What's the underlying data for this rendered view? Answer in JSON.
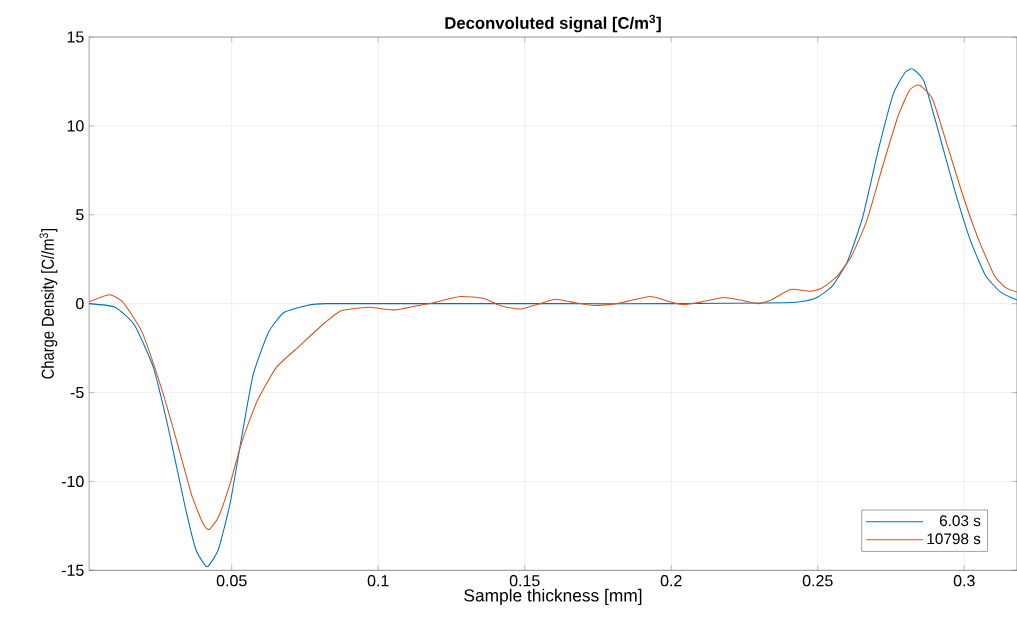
{
  "chart_data": {
    "type": "line",
    "title": "Deconvoluted signal [C/m$^{3}$]",
    "xlabel": "Sample thickness [mm]",
    "ylabel": "Charge Density [C//m$^{3}$]",
    "xlim": [
      0.0013,
      0.318
    ],
    "ylim": [
      -15,
      15
    ],
    "xticks": [
      0.05,
      0.1,
      0.15,
      0.2,
      0.25,
      0.3
    ],
    "yticks": [
      -15,
      -10,
      -5,
      0,
      5,
      10,
      15
    ],
    "grid": true,
    "legend": "bottom right",
    "series": [
      {
        "name": "6.03 s",
        "color": "#0072bd",
        "x": [
          0.0013,
          0.0102,
          0.0168,
          0.0233,
          0.0285,
          0.0338,
          0.0377,
          0.0416,
          0.0455,
          0.0495,
          0.0534,
          0.0573,
          0.0626,
          0.0678,
          0.0757,
          0.0822,
          0.12,
          0.16,
          0.2,
          0.2393,
          0.2458,
          0.25,
          0.255,
          0.2602,
          0.2654,
          0.2706,
          0.2758,
          0.2798,
          0.2824,
          0.2863,
          0.2915,
          0.2967,
          0.302,
          0.3072,
          0.3124,
          0.318
        ],
        "values": [
          0,
          -0.2,
          -1.2,
          -3.6,
          -7.1,
          -11.2,
          -13.8,
          -14.8,
          -13.8,
          -11.2,
          -7.5,
          -4.0,
          -1.6,
          -0.5,
          -0.1,
          0,
          0,
          0,
          0,
          0.05,
          0.15,
          0.37,
          1.0,
          2.4,
          4.9,
          8.6,
          11.8,
          13.0,
          13.2,
          12.5,
          9.5,
          6.4,
          3.6,
          1.6,
          0.65,
          0.2
        ]
      },
      {
        "name": "10798 s",
        "color": "#d95319",
        "x": [
          0.0013,
          0.0082,
          0.0128,
          0.0194,
          0.0259,
          0.0312,
          0.0364,
          0.0403,
          0.0423,
          0.0455,
          0.0495,
          0.0534,
          0.0586,
          0.0652,
          0.073,
          0.0809,
          0.0874,
          0.0966,
          0.1018,
          0.1058,
          0.1123,
          0.1188,
          0.128,
          0.1358,
          0.1424,
          0.1487,
          0.1552,
          0.1605,
          0.1657,
          0.1736,
          0.1815,
          0.1927,
          0.1986,
          0.2039,
          0.2105,
          0.2177,
          0.2236,
          0.2295,
          0.2341,
          0.2407,
          0.2472,
          0.2511,
          0.2564,
          0.2616,
          0.2668,
          0.2721,
          0.2773,
          0.2813,
          0.2846,
          0.2892,
          0.2944,
          0.2997,
          0.3049,
          0.3102,
          0.3141,
          0.318
        ],
        "values": [
          0.1,
          0.5,
          0.1,
          -1.6,
          -4.7,
          -7.7,
          -10.8,
          -12.4,
          -12.7,
          -12.0,
          -10.1,
          -7.8,
          -5.5,
          -3.6,
          -2.4,
          -1.2,
          -0.4,
          -0.2,
          -0.3,
          -0.35,
          -0.15,
          0.05,
          0.4,
          0.3,
          -0.15,
          -0.3,
          0,
          0.25,
          0.1,
          -0.1,
          0,
          0.4,
          0.15,
          -0.05,
          0.1,
          0.35,
          0.2,
          0,
          0.2,
          0.8,
          0.7,
          0.85,
          1.5,
          2.7,
          4.7,
          7.7,
          10.5,
          12.0,
          12.3,
          11.5,
          8.8,
          6.0,
          3.6,
          1.6,
          0.9,
          0.65
        ]
      }
    ]
  }
}
